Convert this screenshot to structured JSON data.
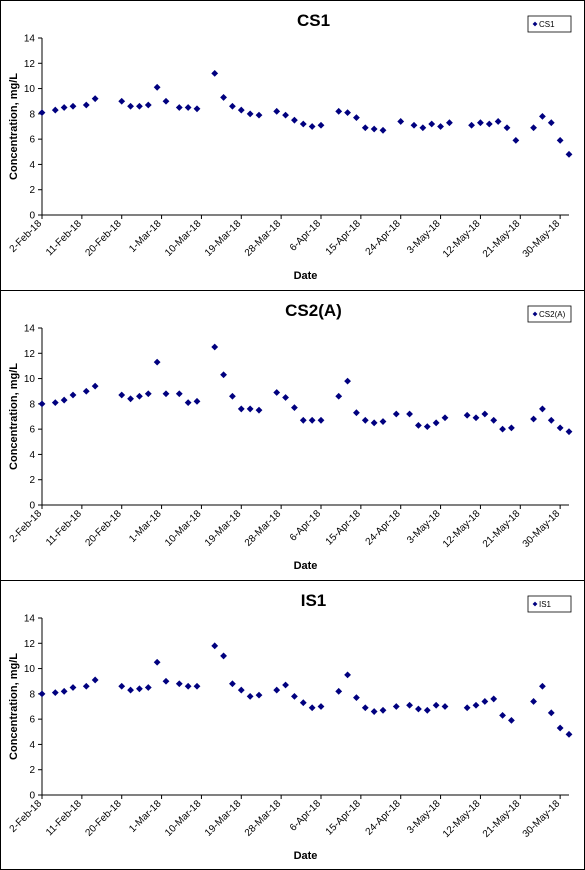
{
  "colors": {
    "marker": "#00007f",
    "axis": "#000000"
  },
  "chart_data": [
    {
      "type": "scatter",
      "title": "CS1",
      "xlabel": "Date",
      "ylabel": "Concentration, mg/L",
      "ylim": [
        0,
        14
      ],
      "yticks": [
        0,
        2,
        4,
        6,
        8,
        10,
        12,
        14
      ],
      "xlim": [
        "2018-02-02",
        "2018-06-01"
      ],
      "xticks": [
        "2-Feb-18",
        "11-Feb-18",
        "20-Feb-18",
        "1-Mar-18",
        "10-Mar-18",
        "19-Mar-18",
        "28-Mar-18",
        "6-Apr-18",
        "15-Apr-18",
        "24-Apr-18",
        "3-May-18",
        "12-May-18",
        "21-May-18",
        "30-May-18"
      ],
      "grid": false,
      "legend": "top-right",
      "series": [
        {
          "name": "CS1",
          "points": [
            [
              "2018-02-02",
              8.1
            ],
            [
              "2018-02-05",
              8.3
            ],
            [
              "2018-02-07",
              8.5
            ],
            [
              "2018-02-09",
              8.6
            ],
            [
              "2018-02-12",
              8.7
            ],
            [
              "2018-02-14",
              9.2
            ],
            [
              "2018-02-20",
              9.0
            ],
            [
              "2018-02-22",
              8.6
            ],
            [
              "2018-02-24",
              8.6
            ],
            [
              "2018-02-26",
              8.7
            ],
            [
              "2018-02-28",
              10.1
            ],
            [
              "2018-03-02",
              9.0
            ],
            [
              "2018-03-05",
              8.5
            ],
            [
              "2018-03-07",
              8.5
            ],
            [
              "2018-03-09",
              8.4
            ],
            [
              "2018-03-13",
              11.2
            ],
            [
              "2018-03-15",
              9.3
            ],
            [
              "2018-03-17",
              8.6
            ],
            [
              "2018-03-19",
              8.3
            ],
            [
              "2018-03-21",
              8.0
            ],
            [
              "2018-03-23",
              7.9
            ],
            [
              "2018-03-27",
              8.2
            ],
            [
              "2018-03-29",
              7.9
            ],
            [
              "2018-03-31",
              7.5
            ],
            [
              "2018-04-02",
              7.2
            ],
            [
              "2018-04-04",
              7.0
            ],
            [
              "2018-04-06",
              7.1
            ],
            [
              "2018-04-10",
              8.2
            ],
            [
              "2018-04-12",
              8.1
            ],
            [
              "2018-04-14",
              7.7
            ],
            [
              "2018-04-16",
              6.9
            ],
            [
              "2018-04-18",
              6.8
            ],
            [
              "2018-04-20",
              6.7
            ],
            [
              "2018-04-24",
              7.4
            ],
            [
              "2018-04-27",
              7.1
            ],
            [
              "2018-04-29",
              6.9
            ],
            [
              "2018-05-01",
              7.2
            ],
            [
              "2018-05-03",
              7.0
            ],
            [
              "2018-05-05",
              7.3
            ],
            [
              "2018-05-10",
              7.1
            ],
            [
              "2018-05-12",
              7.3
            ],
            [
              "2018-05-14",
              7.2
            ],
            [
              "2018-05-16",
              7.4
            ],
            [
              "2018-05-18",
              6.9
            ],
            [
              "2018-05-20",
              5.9
            ],
            [
              "2018-05-24",
              6.9
            ],
            [
              "2018-05-26",
              7.8
            ],
            [
              "2018-05-28",
              7.3
            ],
            [
              "2018-05-30",
              5.9
            ],
            [
              "2018-06-01",
              4.8
            ]
          ]
        }
      ]
    },
    {
      "type": "scatter",
      "title": "CS2(A)",
      "xlabel": "Date",
      "ylabel": "Concentration, mg/L",
      "ylim": [
        0,
        14
      ],
      "yticks": [
        0,
        2,
        4,
        6,
        8,
        10,
        12,
        14
      ],
      "xlim": [
        "2018-02-02",
        "2018-06-01"
      ],
      "xticks": [
        "2-Feb-18",
        "11-Feb-18",
        "20-Feb-18",
        "1-Mar-18",
        "10-Mar-18",
        "19-Mar-18",
        "28-Mar-18",
        "6-Apr-18",
        "15-Apr-18",
        "24-Apr-18",
        "3-May-18",
        "12-May-18",
        "21-May-18",
        "30-May-18"
      ],
      "grid": false,
      "legend": "top-right",
      "series": [
        {
          "name": "CS2(A)",
          "points": [
            [
              "2018-02-02",
              8.0
            ],
            [
              "2018-02-05",
              8.1
            ],
            [
              "2018-02-07",
              8.3
            ],
            [
              "2018-02-09",
              8.7
            ],
            [
              "2018-02-12",
              9.0
            ],
            [
              "2018-02-14",
              9.4
            ],
            [
              "2018-02-20",
              8.7
            ],
            [
              "2018-02-22",
              8.4
            ],
            [
              "2018-02-24",
              8.6
            ],
            [
              "2018-02-26",
              8.8
            ],
            [
              "2018-02-28",
              11.3
            ],
            [
              "2018-03-02",
              8.8
            ],
            [
              "2018-03-05",
              8.8
            ],
            [
              "2018-03-07",
              8.1
            ],
            [
              "2018-03-09",
              8.2
            ],
            [
              "2018-03-13",
              12.5
            ],
            [
              "2018-03-15",
              10.3
            ],
            [
              "2018-03-17",
              8.6
            ],
            [
              "2018-03-19",
              7.6
            ],
            [
              "2018-03-21",
              7.6
            ],
            [
              "2018-03-23",
              7.5
            ],
            [
              "2018-03-27",
              8.9
            ],
            [
              "2018-03-29",
              8.5
            ],
            [
              "2018-03-31",
              7.7
            ],
            [
              "2018-04-02",
              6.7
            ],
            [
              "2018-04-04",
              6.7
            ],
            [
              "2018-04-06",
              6.7
            ],
            [
              "2018-04-10",
              8.6
            ],
            [
              "2018-04-12",
              9.8
            ],
            [
              "2018-04-14",
              7.3
            ],
            [
              "2018-04-16",
              6.7
            ],
            [
              "2018-04-18",
              6.5
            ],
            [
              "2018-04-20",
              6.6
            ],
            [
              "2018-04-23",
              7.2
            ],
            [
              "2018-04-26",
              7.2
            ],
            [
              "2018-04-28",
              6.3
            ],
            [
              "2018-04-30",
              6.2
            ],
            [
              "2018-05-02",
              6.5
            ],
            [
              "2018-05-04",
              6.9
            ],
            [
              "2018-05-09",
              7.1
            ],
            [
              "2018-05-11",
              6.9
            ],
            [
              "2018-05-13",
              7.2
            ],
            [
              "2018-05-15",
              6.7
            ],
            [
              "2018-05-17",
              6.0
            ],
            [
              "2018-05-19",
              6.1
            ],
            [
              "2018-05-24",
              6.8
            ],
            [
              "2018-05-26",
              7.6
            ],
            [
              "2018-05-28",
              6.7
            ],
            [
              "2018-05-30",
              6.1
            ],
            [
              "2018-06-01",
              5.8
            ]
          ]
        }
      ]
    },
    {
      "type": "scatter",
      "title": "IS1",
      "xlabel": "Date",
      "ylabel": "Concentration, mg/L",
      "ylim": [
        0,
        14
      ],
      "yticks": [
        0,
        2,
        4,
        6,
        8,
        10,
        12,
        14
      ],
      "xlim": [
        "2018-02-02",
        "2018-06-01"
      ],
      "xticks": [
        "2-Feb-18",
        "11-Feb-18",
        "20-Feb-18",
        "1-Mar-18",
        "10-Mar-18",
        "19-Mar-18",
        "28-Mar-18",
        "6-Apr-18",
        "15-Apr-18",
        "24-Apr-18",
        "3-May-18",
        "12-May-18",
        "21-May-18",
        "30-May-18"
      ],
      "grid": false,
      "legend": "top-right",
      "series": [
        {
          "name": "IS1",
          "points": [
            [
              "2018-02-02",
              8.0
            ],
            [
              "2018-02-05",
              8.1
            ],
            [
              "2018-02-07",
              8.2
            ],
            [
              "2018-02-09",
              8.5
            ],
            [
              "2018-02-12",
              8.6
            ],
            [
              "2018-02-14",
              9.1
            ],
            [
              "2018-02-20",
              8.6
            ],
            [
              "2018-02-22",
              8.3
            ],
            [
              "2018-02-24",
              8.4
            ],
            [
              "2018-02-26",
              8.5
            ],
            [
              "2018-02-28",
              10.5
            ],
            [
              "2018-03-02",
              9.0
            ],
            [
              "2018-03-05",
              8.8
            ],
            [
              "2018-03-07",
              8.6
            ],
            [
              "2018-03-09",
              8.6
            ],
            [
              "2018-03-13",
              11.8
            ],
            [
              "2018-03-15",
              11.0
            ],
            [
              "2018-03-17",
              8.8
            ],
            [
              "2018-03-19",
              8.3
            ],
            [
              "2018-03-21",
              7.8
            ],
            [
              "2018-03-23",
              7.9
            ],
            [
              "2018-03-27",
              8.3
            ],
            [
              "2018-03-29",
              8.7
            ],
            [
              "2018-03-31",
              7.8
            ],
            [
              "2018-04-02",
              7.3
            ],
            [
              "2018-04-04",
              6.9
            ],
            [
              "2018-04-06",
              7.0
            ],
            [
              "2018-04-10",
              8.2
            ],
            [
              "2018-04-12",
              9.5
            ],
            [
              "2018-04-14",
              7.7
            ],
            [
              "2018-04-16",
              6.9
            ],
            [
              "2018-04-18",
              6.6
            ],
            [
              "2018-04-20",
              6.7
            ],
            [
              "2018-04-23",
              7.0
            ],
            [
              "2018-04-26",
              7.1
            ],
            [
              "2018-04-28",
              6.8
            ],
            [
              "2018-04-30",
              6.7
            ],
            [
              "2018-05-02",
              7.1
            ],
            [
              "2018-05-04",
              7.0
            ],
            [
              "2018-05-09",
              6.9
            ],
            [
              "2018-05-11",
              7.1
            ],
            [
              "2018-05-13",
              7.4
            ],
            [
              "2018-05-15",
              7.6
            ],
            [
              "2018-05-17",
              6.3
            ],
            [
              "2018-05-19",
              5.9
            ],
            [
              "2018-05-24",
              7.4
            ],
            [
              "2018-05-26",
              8.6
            ],
            [
              "2018-05-28",
              6.5
            ],
            [
              "2018-05-30",
              5.3
            ],
            [
              "2018-06-01",
              4.8
            ]
          ]
        }
      ]
    }
  ]
}
